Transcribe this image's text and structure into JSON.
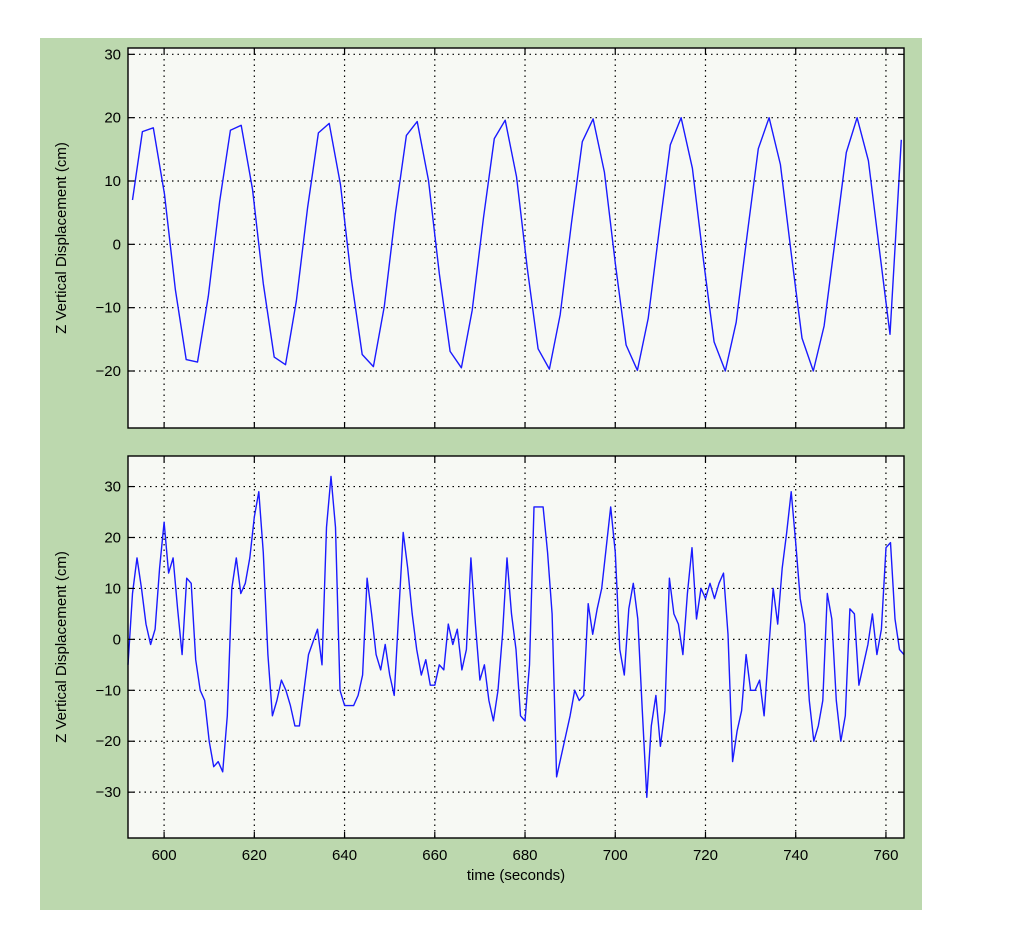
{
  "colors": {
    "figure_bg": "#bcd8ae",
    "axes_bg": "#f7f9f4",
    "line": "#1a1aff",
    "grid": "#000000"
  },
  "chart_data": [
    {
      "type": "line",
      "title": "",
      "xlabel": "",
      "ylabel": "Z Vertical Displacement (cm)",
      "xlim": [
        592,
        764
      ],
      "ylim": [
        -29,
        31
      ],
      "grid": true,
      "xticks": [
        600,
        620,
        640,
        660,
        680,
        700,
        720,
        740,
        760
      ],
      "xtick_labels_shown": false,
      "yticks": [
        -20,
        -10,
        0,
        10,
        20,
        30
      ],
      "ytick_labels": [
        "−20",
        "−10",
        "0",
        "10",
        "20",
        "30"
      ],
      "series": [
        {
          "x": [
            593,
            595.2,
            597.6,
            600.1,
            602.5,
            604.9,
            607.4,
            609.8,
            612.3,
            614.7,
            617.1,
            619.6,
            622.0,
            624.4,
            626.9,
            629.3,
            631.8,
            634.2,
            636.6,
            639.1,
            641.5,
            643.9,
            646.4,
            648.8,
            651.3,
            653.7,
            656.1,
            658.6,
            661.0,
            663.4,
            665.9,
            668.3,
            670.8,
            673.2,
            675.6,
            678.1,
            680.5,
            682.9,
            685.4,
            687.8,
            690.3,
            692.7,
            695.1,
            697.6,
            700.0,
            702.4,
            704.9,
            707.3,
            709.8,
            712.2,
            714.6,
            717.1,
            719.5,
            721.9,
            724.4,
            726.8,
            729.3,
            731.7,
            734.1,
            736.6,
            739.0,
            741.4,
            743.9,
            746.3,
            748.8,
            751.2,
            753.6,
            756.1,
            758.5,
            760.9,
            763.4
          ],
          "y": [
            7,
            17.8,
            18.4,
            7.9,
            -7.2,
            -18.2,
            -18.6,
            -8.2,
            6.7,
            18.0,
            18.8,
            8.7,
            -6.2,
            -17.8,
            -19.0,
            -9.0,
            5.8,
            17.6,
            19.1,
            9.4,
            -5.4,
            -17.4,
            -19.3,
            -9.8,
            5.0,
            17.2,
            19.4,
            10.1,
            -4.6,
            -16.9,
            -19.5,
            -10.4,
            4.2,
            16.7,
            19.6,
            10.7,
            -3.8,
            -16.5,
            -19.7,
            -11.1,
            3.4,
            16.2,
            19.8,
            11.4,
            -3.0,
            -15.9,
            -19.9,
            -11.7,
            2.6,
            15.7,
            20.0,
            12.0,
            -2.2,
            -15.4,
            -20.0,
            -12.3,
            1.8,
            15.1,
            20.0,
            12.6,
            -1.4,
            -14.8,
            -20.0,
            -12.9,
            1.0,
            14.5,
            20.0,
            13.2,
            -0.6,
            -14.2,
            16.5
          ]
        }
      ]
    },
    {
      "type": "line",
      "title": "",
      "xlabel": "time (seconds)",
      "ylabel": "Z Vertical Displacement (cm)",
      "xlim": [
        592,
        764
      ],
      "ylim": [
        -39,
        36
      ],
      "grid": true,
      "xticks": [
        600,
        620,
        640,
        660,
        680,
        700,
        720,
        740,
        760
      ],
      "xtick_labels": [
        "600",
        "620",
        "640",
        "660",
        "680",
        "700",
        "720",
        "740",
        "760"
      ],
      "yticks": [
        -30,
        -20,
        -10,
        0,
        10,
        20,
        30
      ],
      "ytick_labels": [
        "−30",
        "−20",
        "−10",
        "0",
        "10",
        "20",
        "30"
      ],
      "series": [
        {
          "x": [
            592,
            593,
            594,
            595,
            596,
            597,
            598,
            599,
            600,
            601,
            602,
            603,
            604,
            605,
            606,
            607,
            608,
            609,
            610,
            611,
            612,
            613,
            614,
            615,
            616,
            617,
            618,
            619,
            620,
            621,
            622,
            623,
            624,
            625,
            626,
            627,
            628,
            629,
            630,
            632,
            634,
            635,
            636,
            637,
            638,
            639,
            640,
            641,
            642,
            643,
            644,
            645,
            646,
            647,
            648,
            649,
            650,
            651,
            652,
            653,
            654,
            655,
            656,
            657,
            658,
            659,
            660,
            661,
            662,
            663,
            664,
            665,
            666,
            667,
            668,
            669,
            670,
            671,
            672,
            673,
            674,
            675,
            676,
            677,
            678,
            679,
            680,
            681,
            682,
            683,
            684,
            685,
            686,
            687,
            688,
            689,
            690,
            691,
            692,
            693,
            694,
            695,
            696,
            697,
            698,
            699,
            700,
            701,
            702,
            703,
            704,
            705,
            706,
            707,
            708,
            709,
            710,
            711,
            712,
            713,
            714,
            715,
            716,
            717,
            718,
            719,
            720,
            721,
            722,
            723,
            724,
            725,
            726,
            727,
            728,
            729,
            730,
            731,
            732,
            733,
            734,
            735,
            736,
            737,
            738,
            739,
            740,
            741,
            742,
            743,
            744,
            745,
            746,
            747,
            748,
            749,
            750,
            751,
            752,
            753,
            754,
            755,
            756,
            757,
            758,
            759,
            760,
            761,
            762,
            763,
            764
          ],
          "y": [
            -5,
            9,
            16,
            10,
            3,
            -1,
            2,
            14,
            23,
            13,
            16,
            6,
            -3,
            12,
            11,
            -4,
            -10,
            -12,
            -20,
            -25,
            -24,
            -26,
            -15,
            10,
            16,
            9,
            11,
            16,
            24,
            29,
            17,
            -3,
            -15,
            -12,
            -8,
            -10,
            -13,
            -17,
            -17,
            -3,
            2,
            -5,
            22,
            32,
            22,
            -10,
            -13,
            -13,
            -13,
            -11,
            -7,
            12,
            5,
            -3,
            -6,
            -1,
            -7,
            -11,
            5,
            21,
            14,
            5,
            -2,
            -7,
            -4,
            -9,
            -9,
            -5,
            -6,
            3,
            -1,
            2,
            -6,
            -2,
            16,
            3,
            -8,
            -5,
            -12,
            -16,
            -10,
            1,
            16,
            5,
            -2,
            -15,
            -16,
            -5,
            26,
            26,
            26,
            17,
            5,
            -27,
            -23,
            -19,
            -15,
            -10,
            -12,
            -11,
            7,
            1,
            6,
            10,
            18,
            26,
            17,
            -2,
            -7,
            6,
            11,
            4,
            -14,
            -31,
            -17,
            -11,
            -21,
            -14,
            12,
            5,
            3,
            -3,
            9,
            18,
            4,
            10,
            8,
            11,
            8,
            11,
            13,
            1,
            -24,
            -18,
            -14,
            -3,
            -10,
            -10,
            -8,
            -15,
            -2,
            10,
            3,
            14,
            21,
            29,
            19,
            8,
            3,
            -12,
            -20,
            -17,
            -12,
            9,
            4,
            -12,
            -20,
            -15,
            6,
            5,
            -9,
            -5,
            -1,
            5,
            -3,
            2,
            18,
            19,
            4,
            -2,
            -3
          ]
        }
      ]
    }
  ]
}
